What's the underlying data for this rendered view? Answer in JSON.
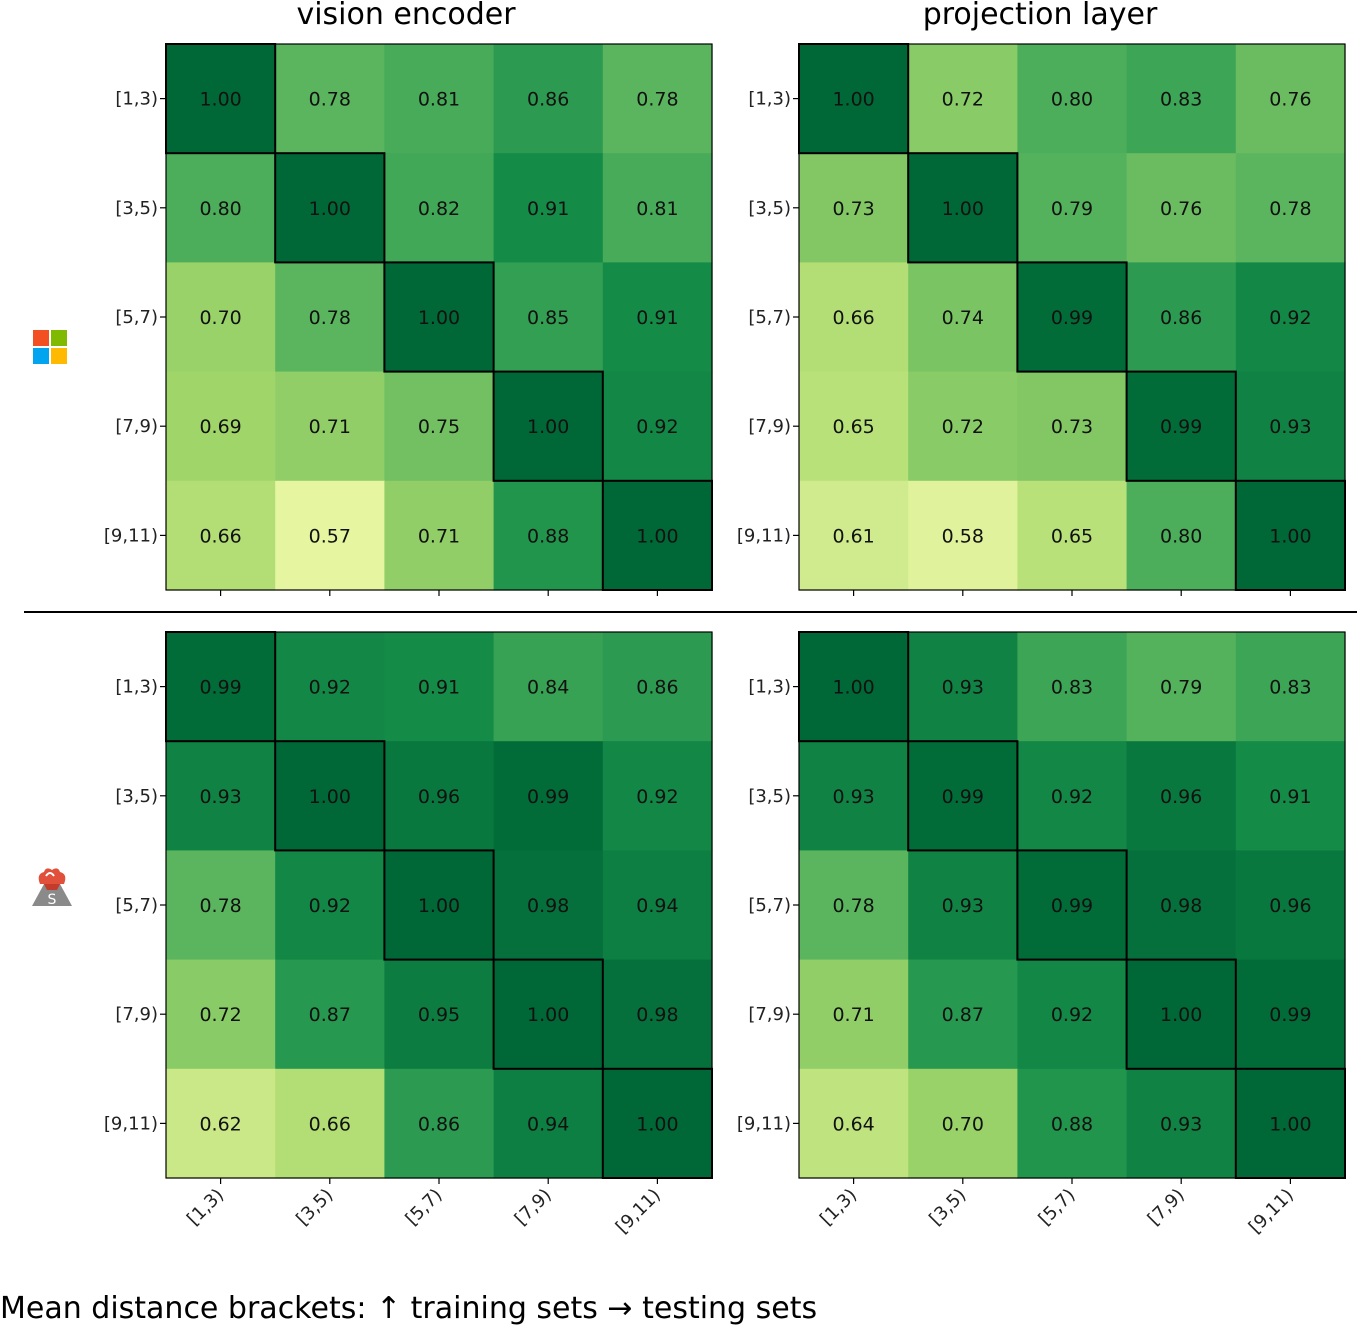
{
  "caption": "Mean distance brackets: ↑ training sets → testing sets",
  "column_titles": [
    "vision encoder",
    "projection layer"
  ],
  "row_icons": [
    "microsoft-logo-icon",
    "volcano-logo-icon"
  ],
  "colors": {
    "min": "#e6f5a0",
    "low": "#a8d96b",
    "mid": "#4cae5b",
    "high": "#178f4a",
    "max": "#006837",
    "diagonal_border": "#000000"
  },
  "chart_data": [
    {
      "type": "heatmap",
      "title": "vision encoder",
      "row": "microsoft",
      "categories": [
        "[1,3)",
        "[3,5)",
        "[5,7)",
        "[7,9)",
        "[9,11)"
      ],
      "values": [
        [
          1.0,
          0.78,
          0.81,
          0.86,
          0.78
        ],
        [
          0.8,
          1.0,
          0.82,
          0.91,
          0.81
        ],
        [
          0.7,
          0.78,
          1.0,
          0.85,
          0.91
        ],
        [
          0.69,
          0.71,
          0.75,
          1.0,
          0.92
        ],
        [
          0.66,
          0.57,
          0.71,
          0.88,
          1.0
        ]
      ],
      "xlabels_visible": false
    },
    {
      "type": "heatmap",
      "title": "projection layer",
      "row": "microsoft",
      "categories": [
        "[1,3)",
        "[3,5)",
        "[5,7)",
        "[7,9)",
        "[9,11)"
      ],
      "values": [
        [
          1.0,
          0.72,
          0.8,
          0.83,
          0.76
        ],
        [
          0.73,
          1.0,
          0.79,
          0.76,
          0.78
        ],
        [
          0.66,
          0.74,
          0.99,
          0.86,
          0.92
        ],
        [
          0.65,
          0.72,
          0.73,
          0.99,
          0.93
        ],
        [
          0.61,
          0.58,
          0.65,
          0.8,
          1.0
        ]
      ],
      "xlabels_visible": false
    },
    {
      "type": "heatmap",
      "title": "",
      "row": "volcano",
      "categories": [
        "[1,3)",
        "[3,5)",
        "[5,7)",
        "[7,9)",
        "[9,11)"
      ],
      "values": [
        [
          0.99,
          0.92,
          0.91,
          0.84,
          0.86
        ],
        [
          0.93,
          1.0,
          0.96,
          0.99,
          0.92
        ],
        [
          0.78,
          0.92,
          1.0,
          0.98,
          0.94
        ],
        [
          0.72,
          0.87,
          0.95,
          1.0,
          0.98
        ],
        [
          0.62,
          0.66,
          0.86,
          0.94,
          1.0
        ]
      ],
      "xlabels_visible": true
    },
    {
      "type": "heatmap",
      "title": "",
      "row": "volcano",
      "categories": [
        "[1,3)",
        "[3,5)",
        "[5,7)",
        "[7,9)",
        "[9,11)"
      ],
      "values": [
        [
          1.0,
          0.93,
          0.83,
          0.79,
          0.83
        ],
        [
          0.93,
          0.99,
          0.92,
          0.96,
          0.91
        ],
        [
          0.78,
          0.93,
          0.99,
          0.98,
          0.96
        ],
        [
          0.71,
          0.87,
          0.92,
          1.0,
          0.99
        ],
        [
          0.64,
          0.7,
          0.88,
          0.93,
          1.0
        ]
      ],
      "xlabels_visible": true
    }
  ]
}
